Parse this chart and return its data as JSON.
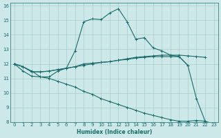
{
  "xlabel": "Humidex (Indice chaleur)",
  "background_color": "#cce8e8",
  "grid_color": "#aacccc",
  "line_color": "#1a6b6b",
  "xlim": [
    -0.5,
    23.5
  ],
  "ylim": [
    8,
    16.2
  ],
  "xticks": [
    0,
    1,
    2,
    3,
    4,
    5,
    6,
    7,
    8,
    9,
    10,
    11,
    12,
    13,
    14,
    15,
    16,
    17,
    18,
    19,
    20,
    21,
    22,
    23
  ],
  "yticks": [
    8,
    9,
    10,
    11,
    12,
    13,
    14,
    15,
    16
  ],
  "series": [
    {
      "x": [
        0,
        1,
        2,
        3,
        4,
        5,
        6,
        7,
        8,
        9,
        10,
        11,
        12,
        13,
        14,
        15,
        16,
        17,
        18,
        19,
        20,
        21,
        22,
        23
      ],
      "y": [
        12.0,
        11.8,
        11.5,
        11.1,
        11.1,
        11.5,
        11.7,
        12.9,
        14.9,
        15.1,
        15.05,
        15.5,
        15.8,
        14.9,
        13.7,
        13.8,
        13.1,
        12.9,
        12.6,
        12.5,
        11.9,
        9.6,
        8.05,
        7.8
      ]
    },
    {
      "x": [
        0,
        1,
        2,
        3,
        4,
        5,
        6,
        7,
        8,
        9,
        10,
        11,
        12,
        13,
        14,
        15,
        16,
        17,
        18,
        19,
        20
      ],
      "y": [
        12.0,
        11.8,
        11.45,
        11.45,
        11.5,
        11.6,
        11.7,
        11.8,
        11.9,
        12.0,
        12.1,
        12.15,
        12.25,
        12.3,
        12.4,
        12.45,
        12.5,
        12.5,
        12.5,
        12.5,
        11.9
      ]
    },
    {
      "x": [
        0,
        1,
        2,
        3,
        4,
        5,
        6,
        7,
        8,
        9,
        10,
        11,
        12,
        13,
        14,
        15,
        16,
        17,
        18,
        19,
        20,
        21,
        22
      ],
      "y": [
        12.0,
        11.8,
        11.45,
        11.45,
        11.5,
        11.6,
        11.7,
        11.8,
        12.0,
        12.05,
        12.1,
        12.15,
        12.25,
        12.35,
        12.45,
        12.5,
        12.55,
        12.6,
        12.6,
        12.6,
        12.55,
        12.5,
        12.45
      ]
    },
    {
      "x": [
        0,
        1,
        2,
        3,
        4,
        5,
        6,
        7,
        8,
        9,
        10,
        11,
        12,
        13,
        14,
        15,
        16,
        17,
        18,
        19,
        20,
        21,
        22,
        23
      ],
      "y": [
        12.0,
        11.5,
        11.15,
        11.1,
        11.0,
        10.8,
        10.6,
        10.4,
        10.1,
        9.9,
        9.6,
        9.4,
        9.2,
        9.0,
        8.8,
        8.6,
        8.45,
        8.3,
        8.15,
        8.05,
        8.05,
        8.1,
        8.05,
        7.85
      ]
    }
  ]
}
